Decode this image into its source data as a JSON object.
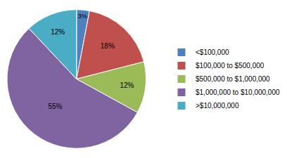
{
  "chart_data": {
    "type": "pie",
    "categories": [
      "<$100,000",
      "$100,000 to $500,000",
      "$500,000 to $1,000,000",
      "$1,000,000 to $10,000,000",
      ">$10,000,000"
    ],
    "values": [
      3,
      18,
      12,
      55,
      12
    ],
    "value_labels": [
      "3%",
      "18%",
      "12%",
      "55%",
      "12%"
    ],
    "colors": [
      "#4f81bd",
      "#c0504d",
      "#9bbb59",
      "#8064a2",
      "#4bacc6"
    ],
    "data_labels": true,
    "legend": "right"
  }
}
